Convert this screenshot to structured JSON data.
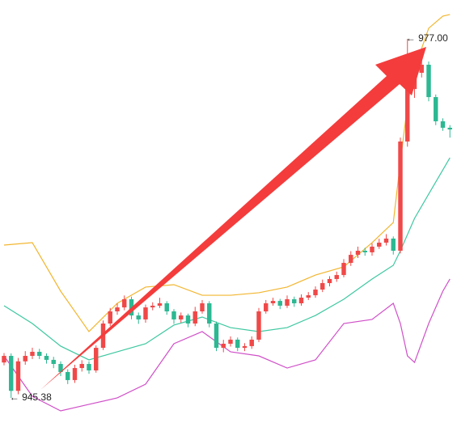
{
  "chart_data": {
    "type": "candlestick",
    "xlim": [
      -0.57,
      64
    ],
    "ylim": [
      943.17,
      980.42
    ],
    "up_color": "#f04848",
    "down_color": "#2cb892",
    "open": [
      948.5,
      949.08,
      946.0,
      948.6,
      949.08,
      949.44,
      949.08,
      948.73,
      948.37,
      947.66,
      946.95,
      948.01,
      948.37,
      947.8,
      949.79,
      951.93,
      953.0,
      953.35,
      954.07,
      952.64,
      952.29,
      953.35,
      953.5,
      953.71,
      953.0,
      952.29,
      952.64,
      951.93,
      953.0,
      953.71,
      951.93,
      949.79,
      950.15,
      950.51,
      949.79,
      949.94,
      950.51,
      953.0,
      953.71,
      953.92,
      953.5,
      954.07,
      953.71,
      954.21,
      954.42,
      954.92,
      955.49,
      955.85,
      956.2,
      957.27,
      957.98,
      958.34,
      958.2,
      958.7,
      959.05,
      959.41,
      958.34,
      967.96,
      972.58,
      974.01,
      974.72,
      971.87,
      969.74,
      969.17
    ],
    "high": [
      949.33,
      949.3,
      948.9,
      949.5,
      949.8,
      949.7,
      949.3,
      949.0,
      948.6,
      947.9,
      948.3,
      948.7,
      948.6,
      950.0,
      952.2,
      953.3,
      953.7,
      954.4,
      954.3,
      952.9,
      953.6,
      953.8,
      954.2,
      953.9,
      953.2,
      952.9,
      952.8,
      953.4,
      954.0,
      953.9,
      952.1,
      950.5,
      950.8,
      950.7,
      950.2,
      950.8,
      953.3,
      954.0,
      954.2,
      954.1,
      954.4,
      954.3,
      954.5,
      954.7,
      955.2,
      955.8,
      956.1,
      956.5,
      957.6,
      958.3,
      958.7,
      958.6,
      959.0,
      959.4,
      959.8,
      959.6,
      968.3,
      977.0,
      974.4,
      975.1,
      975.0,
      972.1,
      970.0,
      969.4
    ],
    "low": [
      948.25,
      945.38,
      945.7,
      948.3,
      948.8,
      948.8,
      948.4,
      948.0,
      947.3,
      946.6,
      946.7,
      947.7,
      947.5,
      947.6,
      949.6,
      951.7,
      952.7,
      953.1,
      952.3,
      951.9,
      952.0,
      953.1,
      953.3,
      952.7,
      951.9,
      952.0,
      951.6,
      951.7,
      952.8,
      951.6,
      949.5,
      949.4,
      949.9,
      949.5,
      949.5,
      949.7,
      950.3,
      952.8,
      953.5,
      953.2,
      953.3,
      953.4,
      953.5,
      954.0,
      954.2,
      954.7,
      955.2,
      955.6,
      956.0,
      957.0,
      957.7,
      957.9,
      957.9,
      958.5,
      958.8,
      958.0,
      958.1,
      967.5,
      971.8,
      973.6,
      971.5,
      969.4,
      968.9,
      968.3
    ],
    "close": [
      949.08,
      946.0,
      948.6,
      949.08,
      949.44,
      949.08,
      948.73,
      948.37,
      947.66,
      946.95,
      948.01,
      948.37,
      947.8,
      949.79,
      951.93,
      953.0,
      953.35,
      954.07,
      952.64,
      952.29,
      953.35,
      953.5,
      953.71,
      953.0,
      952.29,
      952.64,
      951.93,
      953.0,
      953.71,
      951.93,
      949.79,
      950.15,
      950.51,
      949.79,
      949.94,
      950.51,
      953.0,
      953.71,
      953.92,
      953.5,
      954.07,
      953.71,
      954.21,
      954.42,
      954.92,
      955.49,
      955.85,
      956.2,
      957.27,
      957.98,
      958.34,
      958.2,
      958.7,
      959.05,
      959.41,
      958.34,
      967.96,
      972.58,
      974.01,
      974.72,
      971.87,
      969.74,
      969.17,
      969.02
    ],
    "high_labels": [
      null,
      null,
      null,
      null,
      null,
      null,
      null,
      null,
      null,
      null,
      null,
      null,
      null,
      null,
      null,
      null,
      null,
      null,
      null,
      null,
      null,
      null,
      null,
      null,
      null,
      null,
      null,
      null,
      null,
      null,
      null,
      null,
      null,
      null,
      null,
      null,
      null,
      null,
      null,
      null,
      null,
      null,
      null,
      null,
      null,
      null,
      null,
      null,
      null,
      null,
      null,
      null,
      null,
      null,
      null,
      null,
      null,
      "← 977.00",
      null,
      null,
      null,
      null,
      null,
      null
    ],
    "low_labels": [
      null,
      "← 945.38",
      null,
      null,
      null,
      null,
      null,
      null,
      null,
      null,
      null,
      null,
      null,
      null,
      null,
      null,
      null,
      null,
      null,
      null,
      null,
      null,
      null,
      null,
      null,
      null,
      null,
      null,
      null,
      null,
      null,
      null,
      null,
      null,
      null,
      null,
      null,
      null,
      null,
      null,
      null,
      null,
      null,
      null,
      null,
      null,
      null,
      null,
      null,
      null,
      null,
      null,
      null,
      null,
      null,
      null,
      null,
      null,
      null,
      null,
      null,
      null,
      null,
      null
    ],
    "bands": [
      {
        "color": "#f2b630",
        "x": [
          0,
          4,
          8,
          12,
          16,
          20,
          24,
          28,
          32,
          36,
          40,
          44,
          48,
          52,
          55,
          56,
          57,
          58,
          60,
          62,
          63
        ],
        "values": [
          958.84,
          959.05,
          954.78,
          951.22,
          953.71,
          955.14,
          955.35,
          954.42,
          954.42,
          954.64,
          955.14,
          956.2,
          956.92,
          959.05,
          960.83,
          966.17,
          971.16,
          974.36,
          977.93,
          979.0,
          979.14
        ]
      },
      {
        "color": "#3ec8a0",
        "x": [
          0,
          4,
          8,
          12,
          16,
          20,
          24,
          28,
          32,
          36,
          40,
          44,
          48,
          52,
          55,
          56,
          57,
          58,
          60,
          62,
          63
        ],
        "values": [
          953.5,
          951.93,
          949.94,
          948.73,
          949.44,
          950.15,
          951.79,
          952.5,
          951.57,
          951.22,
          951.57,
          952.64,
          954.07,
          955.85,
          957.06,
          958.34,
          959.76,
          961.19,
          963.33,
          965.46,
          966.53
        ]
      },
      {
        "color": "#d050c8",
        "x": [
          0,
          4,
          8,
          12,
          16,
          20,
          24,
          28,
          32,
          36,
          40,
          44,
          48,
          52,
          55,
          56,
          57,
          58,
          60,
          62,
          63
        ],
        "values": [
          949.08,
          945.52,
          944.24,
          944.81,
          945.38,
          946.59,
          950.15,
          951.22,
          949.44,
          949.08,
          948.01,
          948.73,
          951.93,
          952.29,
          953.71,
          951.93,
          949.08,
          948.51,
          951.93,
          954.78,
          955.85
        ]
      }
    ]
  }
}
